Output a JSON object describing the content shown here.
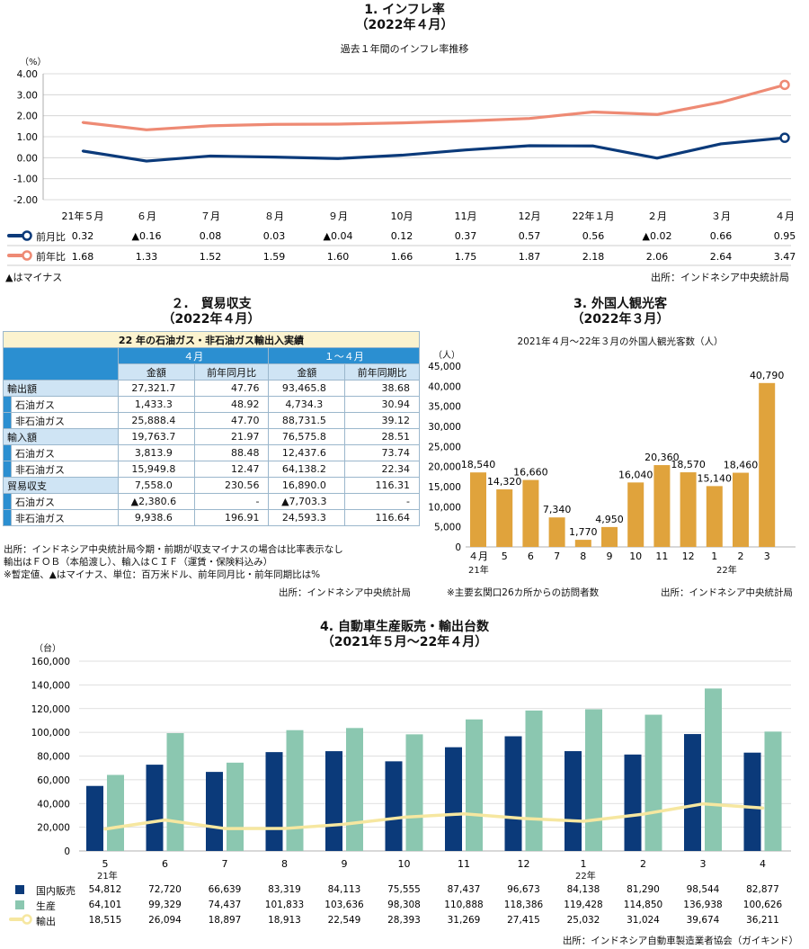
{
  "inflation": {
    "title1": "1. インフレ率",
    "title2": "（2022年４月）",
    "subtitle": "過去１年間のインフレ率推移",
    "unit": "（%）",
    "note": "▲はマイナス",
    "source": "出所：インドネシア中央統計局",
    "legend_mom": "前月比",
    "legend_yoy": "前年比",
    "mom_display": [
      "0.32",
      "▲0.16",
      "0.08",
      "0.03",
      "▲0.04",
      "0.12",
      "0.37",
      "0.57",
      "0.56",
      "▲0.02",
      "0.66",
      "0.95"
    ],
    "yoy_display": [
      "1.68",
      "1.33",
      "1.52",
      "1.59",
      "1.60",
      "1.66",
      "1.75",
      "1.87",
      "2.18",
      "2.06",
      "2.64",
      "3.47"
    ]
  },
  "trade": {
    "title1": "２.　貿易収支",
    "title2": "（2022年４月）",
    "table_title": "22 年の石油ガス・非石油ガス輸出入実績",
    "period1": "４月",
    "period2": "１～４月",
    "col_amount": "金額",
    "col_yoy_month": "前年同月比",
    "col_yoy_period": "前年同期比",
    "rows": [
      {
        "label": "輸出額",
        "sub": false,
        "v": [
          "27,321.7",
          "47.76",
          "93,465.8",
          "38.68"
        ]
      },
      {
        "label": "石油ガス",
        "sub": true,
        "v": [
          "1,433.3",
          "48.92",
          "4,734.3",
          "30.94"
        ]
      },
      {
        "label": "非石油ガス",
        "sub": true,
        "v": [
          "25,888.4",
          "47.70",
          "88,731.5",
          "39.12"
        ]
      },
      {
        "label": "輸入額",
        "sub": false,
        "v": [
          "19,763.7",
          "21.97",
          "76,575.8",
          "28.51"
        ]
      },
      {
        "label": "石油ガス",
        "sub": true,
        "v": [
          "3,813.9",
          "88.48",
          "12,437.6",
          "73.74"
        ]
      },
      {
        "label": "非石油ガス",
        "sub": true,
        "v": [
          "15,949.8",
          "12.47",
          "64,138.2",
          "22.34"
        ]
      },
      {
        "label": "貿易収支",
        "sub": false,
        "v": [
          "7,558.0",
          "230.56",
          "16,890.0",
          "116.31"
        ]
      },
      {
        "label": "石油ガス",
        "sub": true,
        "v": [
          "▲2,380.6",
          "-",
          "▲7,703.3",
          "-"
        ]
      },
      {
        "label": "非石油ガス",
        "sub": true,
        "v": [
          "9,938.6",
          "196.91",
          "24,593.3",
          "116.64"
        ]
      }
    ],
    "notes": [
      "出所：インドネシア中央統計局今期・前期が収支マイナスの場合は比率表示なし",
      "輸出はＦＯＢ（本船渡し）、輸入はＣＩＦ（運賃・保険料込み）",
      "※暫定値、▲はマイナス、単位：百万米ドル、前年同月比・前年同期比は%"
    ],
    "source": "出所：インドネシア中央統計局"
  },
  "tourists": {
    "title1": "3. 外国人観光客",
    "title2": "（2022年３月）",
    "subtitle": "2021年４月～22年３月の外国人観光客数（人）",
    "unit": "（人）",
    "year_label_1": "21年",
    "year_label_2": "22年",
    "note": "※主要玄関口26カ所からの訪問者数",
    "source": "出所：インドネシア中央統計局",
    "bar_color": "#e0a33c",
    "labels": [
      "18,540",
      "14,320",
      "16,660",
      "7,340",
      "1,770",
      "4,950",
      "16,040",
      "20,360",
      "18,570",
      "15,140",
      "18,460",
      "40,790"
    ]
  },
  "auto": {
    "title1": "4. 自動車生産販売・輸出台数",
    "title2": "（2021年５月～22年４月）",
    "unit": "（台）",
    "year_label_1": "21年",
    "year_label_2": "22年",
    "legend_domestic": "国内販売",
    "legend_production": "生産",
    "legend_export": "輸出",
    "source": "出所：インドネシア自動車製造業者協会（ガイキンド）",
    "colors": {
      "domestic": "#0b3a7a",
      "production": "#8bc7b0",
      "export": "#f6e7a0"
    },
    "domestic_display": [
      "54,812",
      "72,720",
      "66,639",
      "83,319",
      "84,113",
      "75,555",
      "87,437",
      "96,673",
      "84,138",
      "81,290",
      "98,544",
      "82,877"
    ],
    "production_display": [
      "64,101",
      "99,329",
      "74,437",
      "101,833",
      "103,636",
      "98,308",
      "110,888",
      "118,386",
      "119,428",
      "114,850",
      "136,938",
      "100,626"
    ],
    "export_display": [
      "18,515",
      "26,094",
      "18,897",
      "18,913",
      "22,549",
      "28,393",
      "31,269",
      "27,415",
      "25,032",
      "31,024",
      "39,674",
      "36,211"
    ]
  },
  "chart_data": [
    {
      "type": "line",
      "title": "1. インフレ率 （2022年４月）",
      "subtitle": "過去１年間のインフレ率推移",
      "ylabel": "（%）",
      "ylim": [
        -2,
        4
      ],
      "yticks": [
        "4.00",
        "3.00",
        "2.00",
        "1.00",
        "0.00",
        "-1.00",
        "-2.00"
      ],
      "categories": [
        "21年５月",
        "６月",
        "７月",
        "８月",
        "９月",
        "10月",
        "11月",
        "12月",
        "22年１月",
        "２月",
        "３月",
        "４月"
      ],
      "series": [
        {
          "name": "前月比",
          "color": "#0b3a7a",
          "values": [
            0.32,
            -0.16,
            0.08,
            0.03,
            -0.04,
            0.12,
            0.37,
            0.57,
            0.56,
            -0.02,
            0.66,
            0.95
          ]
        },
        {
          "name": "前年比",
          "color": "#ee8a74",
          "values": [
            1.68,
            1.33,
            1.52,
            1.59,
            1.6,
            1.66,
            1.75,
            1.87,
            2.18,
            2.06,
            2.64,
            3.47
          ]
        }
      ],
      "grid": true
    },
    {
      "type": "table",
      "title": "２.　貿易収支 （2022年４月）",
      "subtitle": "22 年の石油ガス・非石油ガス輸出入実績"
    },
    {
      "type": "bar",
      "title": "3. 外国人観光客 （2022年３月）",
      "subtitle": "2021年４月～22年３月の外国人観光客数（人）",
      "ylabel": "（人）",
      "ylim": [
        0,
        45000
      ],
      "yticks": [
        "45,000",
        "40,000",
        "35,000",
        "30,000",
        "25,000",
        "20,000",
        "15,000",
        "10,000",
        "5,000",
        "0"
      ],
      "categories": [
        "４月",
        "5",
        "6",
        "7",
        "8",
        "9",
        "10",
        "11",
        "12",
        "1",
        "2",
        "3"
      ],
      "values": [
        18540,
        14320,
        16660,
        7340,
        1770,
        4950,
        16040,
        20360,
        18570,
        15140,
        18460,
        40790
      ],
      "grid": false
    },
    {
      "type": "bar",
      "title": "4. 自動車生産販売・輸出台数 （2021年５月～22年４月）",
      "ylabel": "（台）",
      "ylim": [
        0,
        160000
      ],
      "yticks": [
        "160,000",
        "140,000",
        "120,000",
        "100,000",
        "80,000",
        "60,000",
        "40,000",
        "20,000",
        "0"
      ],
      "categories": [
        "5",
        "6",
        "7",
        "8",
        "9",
        "10",
        "11",
        "12",
        "1",
        "2",
        "3",
        "4"
      ],
      "series": [
        {
          "name": "国内販売",
          "type": "bar",
          "color": "#0b3a7a",
          "values": [
            54812,
            72720,
            66639,
            83319,
            84113,
            75555,
            87437,
            96673,
            84138,
            81290,
            98544,
            82877
          ]
        },
        {
          "name": "生産",
          "type": "bar",
          "color": "#8bc7b0",
          "values": [
            64101,
            99329,
            74437,
            101833,
            103636,
            98308,
            110888,
            118386,
            119428,
            114850,
            136938,
            100626
          ]
        },
        {
          "name": "輸出",
          "type": "line",
          "color": "#f6e7a0",
          "values": [
            18515,
            26094,
            18897,
            18913,
            22549,
            28393,
            31269,
            27415,
            25032,
            31024,
            39674,
            36211
          ]
        }
      ],
      "grid": true,
      "legend": "bottom-left"
    }
  ]
}
